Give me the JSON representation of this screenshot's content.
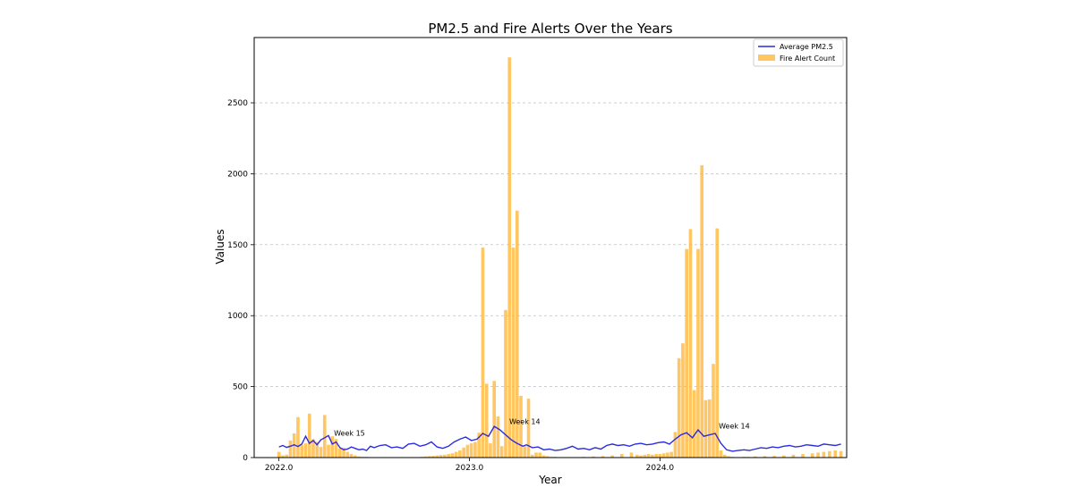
{
  "chart_data": {
    "type": "bar",
    "title": "PM2.5 and Fire Alerts Over the Years",
    "xlabel": "Year",
    "ylabel": "Values",
    "xlim": [
      2021.87,
      2024.98
    ],
    "ylim": [
      0,
      2960
    ],
    "x_ticks": [
      2022.0,
      2023.0,
      2024.0
    ],
    "x_tick_labels": [
      "2022.0",
      "2023.0",
      "2024.0"
    ],
    "y_ticks": [
      0,
      500,
      1000,
      1500,
      2000,
      2500
    ],
    "y_tick_labels": [
      "0",
      "500",
      "1000",
      "1500",
      "2000",
      "2500"
    ],
    "grid": "y-dashed",
    "legend_position": "top-right",
    "colors": {
      "bar": "#FFB83A",
      "line": "#2B2BE0"
    },
    "bar_width": 0.017,
    "series": [
      {
        "name": "Fire Alert Count",
        "type": "bar",
        "x": [
          2022.0,
          2022.02,
          2022.04,
          2022.06,
          2022.08,
          2022.1,
          2022.12,
          2022.14,
          2022.16,
          2022.18,
          2022.2,
          2022.22,
          2022.24,
          2022.26,
          2022.28,
          2022.3,
          2022.32,
          2022.34,
          2022.36,
          2022.38,
          2022.4,
          2022.42,
          2022.44,
          2022.46,
          2022.48,
          2022.5,
          2022.55,
          2022.6,
          2022.65,
          2022.7,
          2022.75,
          2022.77,
          2022.79,
          2022.81,
          2022.83,
          2022.85,
          2022.87,
          2022.89,
          2022.91,
          2022.93,
          2022.95,
          2022.97,
          2022.99,
          2023.01,
          2023.03,
          2023.05,
          2023.07,
          2023.09,
          2023.11,
          2023.13,
          2023.15,
          2023.17,
          2023.19,
          2023.21,
          2023.23,
          2023.25,
          2023.27,
          2023.29,
          2023.31,
          2023.33,
          2023.35,
          2023.37,
          2023.39,
          2023.41,
          2023.43,
          2023.45,
          2023.47,
          2023.49,
          2023.55,
          2023.6,
          2023.65,
          2023.7,
          2023.75,
          2023.8,
          2023.85,
          2023.88,
          2023.9,
          2023.92,
          2023.94,
          2023.96,
          2023.98,
          2024.0,
          2024.02,
          2024.04,
          2024.06,
          2024.08,
          2024.1,
          2024.12,
          2024.14,
          2024.16,
          2024.18,
          2024.2,
          2024.22,
          2024.24,
          2024.26,
          2024.28,
          2024.3,
          2024.32,
          2024.34,
          2024.36,
          2024.38,
          2024.4,
          2024.42,
          2024.44,
          2024.46,
          2024.5,
          2024.55,
          2024.6,
          2024.65,
          2024.7,
          2024.75,
          2024.8,
          2024.83,
          2024.86,
          2024.89,
          2024.92,
          2024.95
        ],
        "values": [
          40,
          15,
          20,
          120,
          170,
          285,
          90,
          100,
          310,
          130,
          110,
          75,
          300,
          90,
          150,
          130,
          65,
          70,
          40,
          25,
          15,
          8,
          5,
          5,
          3,
          3,
          2,
          2,
          2,
          3,
          5,
          8,
          10,
          12,
          15,
          18,
          20,
          25,
          30,
          40,
          50,
          70,
          90,
          100,
          110,
          175,
          1480,
          520,
          100,
          540,
          290,
          80,
          1040,
          2820,
          1480,
          1740,
          435,
          80,
          415,
          20,
          35,
          35,
          15,
          10,
          5,
          5,
          3,
          3,
          3,
          5,
          8,
          10,
          15,
          25,
          35,
          20,
          15,
          20,
          25,
          20,
          25,
          25,
          30,
          35,
          40,
          180,
          700,
          805,
          1470,
          1610,
          475,
          1470,
          2060,
          405,
          410,
          660,
          1615,
          50,
          20,
          10,
          5,
          3,
          3,
          5,
          5,
          8,
          10,
          12,
          15,
          20,
          25,
          30,
          35,
          40,
          45,
          50,
          45
        ]
      },
      {
        "name": "Average PM2.5",
        "type": "line",
        "x": [
          2022.0,
          2022.02,
          2022.04,
          2022.06,
          2022.08,
          2022.1,
          2022.12,
          2022.14,
          2022.16,
          2022.18,
          2022.2,
          2022.22,
          2022.24,
          2022.26,
          2022.28,
          2022.3,
          2022.32,
          2022.34,
          2022.36,
          2022.38,
          2022.4,
          2022.42,
          2022.44,
          2022.46,
          2022.48,
          2022.5,
          2022.53,
          2022.56,
          2022.59,
          2022.62,
          2022.65,
          2022.68,
          2022.71,
          2022.74,
          2022.77,
          2022.8,
          2022.83,
          2022.86,
          2022.89,
          2022.92,
          2022.95,
          2022.98,
          2023.01,
          2023.04,
          2023.07,
          2023.1,
          2023.13,
          2023.16,
          2023.19,
          2023.22,
          2023.25,
          2023.28,
          2023.3,
          2023.33,
          2023.36,
          2023.39,
          2023.42,
          2023.45,
          2023.48,
          2023.51,
          2023.54,
          2023.57,
          2023.6,
          2023.63,
          2023.66,
          2023.69,
          2023.72,
          2023.75,
          2023.78,
          2023.81,
          2023.84,
          2023.87,
          2023.9,
          2023.93,
          2023.96,
          2023.99,
          2024.02,
          2024.05,
          2024.08,
          2024.11,
          2024.14,
          2024.17,
          2024.2,
          2024.23,
          2024.26,
          2024.29,
          2024.32,
          2024.35,
          2024.38,
          2024.41,
          2024.44,
          2024.47,
          2024.5,
          2024.53,
          2024.56,
          2024.59,
          2024.62,
          2024.65,
          2024.68,
          2024.71,
          2024.74,
          2024.77,
          2024.8,
          2024.83,
          2024.86,
          2024.89,
          2024.92,
          2024.95
        ],
        "values": [
          75,
          85,
          72,
          80,
          90,
          78,
          95,
          150,
          100,
          120,
          90,
          125,
          140,
          155,
          95,
          110,
          70,
          55,
          60,
          75,
          65,
          55,
          60,
          50,
          80,
          70,
          85,
          90,
          70,
          75,
          65,
          95,
          100,
          80,
          90,
          110,
          75,
          65,
          80,
          110,
          130,
          145,
          120,
          130,
          170,
          150,
          220,
          195,
          160,
          125,
          100,
          80,
          90,
          70,
          75,
          55,
          60,
          50,
          55,
          65,
          80,
          60,
          65,
          55,
          70,
          60,
          85,
          95,
          85,
          90,
          80,
          95,
          100,
          90,
          95,
          105,
          110,
          95,
          130,
          160,
          175,
          140,
          195,
          150,
          160,
          170,
          100,
          55,
          45,
          50,
          55,
          50,
          60,
          70,
          65,
          75,
          70,
          80,
          85,
          75,
          80,
          90,
          85,
          80,
          95,
          90,
          85,
          95
        ]
      }
    ],
    "annotations": [
      {
        "text": "Week 15",
        "x": 2022.37,
        "y": 155
      },
      {
        "text": "Week 14",
        "x": 2023.29,
        "y": 235
      },
      {
        "text": "Week 14",
        "x": 2024.39,
        "y": 205
      }
    ]
  }
}
